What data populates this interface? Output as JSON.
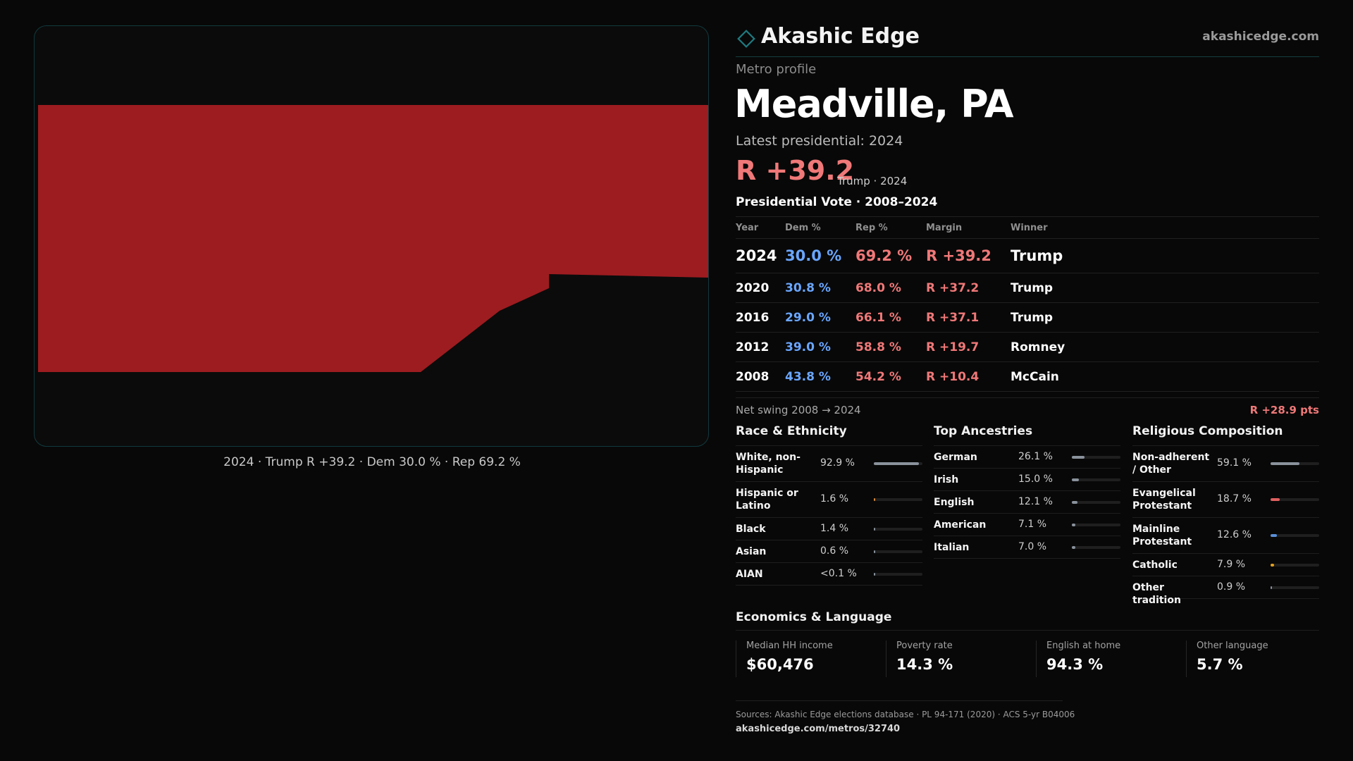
{
  "map": {
    "caption": "2024 · Trump R +39.2 · Dem 30.0 % · Rep 69.2 %",
    "fill_color": "#9d1c20"
  },
  "brand": {
    "name": "Akashic Edge",
    "url": "akashicedge.com",
    "accent_color": "#1f7a80"
  },
  "header": {
    "kicker": "Metro profile",
    "title": "Meadville, PA",
    "latest_label": "Latest presidential: 2024",
    "latest_margin": "R +39.2",
    "latest_sub": "Trump · 2024"
  },
  "vote_table": {
    "title": "Presidential Vote · 2008–2024",
    "columns": [
      "Year",
      "Dem %",
      "Rep %",
      "Margin",
      "Winner"
    ],
    "rows": [
      {
        "year": "2024",
        "dem": "30.0 %",
        "rep": "69.2 %",
        "margin": "R +39.2",
        "winner": "Trump"
      },
      {
        "year": "2020",
        "dem": "30.8 %",
        "rep": "68.0 %",
        "margin": "R +37.2",
        "winner": "Trump"
      },
      {
        "year": "2016",
        "dem": "29.0 %",
        "rep": "66.1 %",
        "margin": "R +37.1",
        "winner": "Trump"
      },
      {
        "year": "2012",
        "dem": "39.0 %",
        "rep": "58.8 %",
        "margin": "R +19.7",
        "winner": "Romney"
      },
      {
        "year": "2008",
        "dem": "43.8 %",
        "rep": "54.2 %",
        "margin": "R +10.4",
        "winner": "McCain"
      }
    ]
  },
  "swing": {
    "label": "Net swing 2008 → 2024",
    "value": "R +28.9 pts"
  },
  "race": {
    "title": "Race & Ethnicity",
    "items": [
      {
        "label": "White, non-Hispanic",
        "value": "92.9 %",
        "fraction": 0.929,
        "color": "#8a929c"
      },
      {
        "label": "Hispanic or Latino",
        "value": "1.6 %",
        "fraction": 0.016,
        "color": "#d98a3a"
      },
      {
        "label": "Black",
        "value": "1.4 %",
        "fraction": 0.014,
        "color": "#8a929c"
      },
      {
        "label": "Asian",
        "value": "0.6 %",
        "fraction": 0.006,
        "color": "#8a929c"
      },
      {
        "label": "AIAN",
        "value": "<0.1 %",
        "fraction": 0.0,
        "color": "#8a929c"
      }
    ]
  },
  "ancestry": {
    "title": "Top Ancestries",
    "items": [
      {
        "label": "German",
        "value": "26.1 %",
        "fraction": 0.261,
        "color": "#8a929c"
      },
      {
        "label": "Irish",
        "value": "15.0 %",
        "fraction": 0.15,
        "color": "#8a929c"
      },
      {
        "label": "English",
        "value": "12.1 %",
        "fraction": 0.121,
        "color": "#8a929c"
      },
      {
        "label": "American",
        "value": "7.1 %",
        "fraction": 0.071,
        "color": "#8a929c"
      },
      {
        "label": "Italian",
        "value": "7.0 %",
        "fraction": 0.07,
        "color": "#8a929c"
      }
    ]
  },
  "religion": {
    "title": "Religious Composition",
    "items": [
      {
        "label": "Non-adherent / Other",
        "value": "59.1 %",
        "fraction": 0.591,
        "color": "#8a929c"
      },
      {
        "label": "Evangelical Protestant",
        "value": "18.7 %",
        "fraction": 0.187,
        "color": "#e06060"
      },
      {
        "label": "Mainline Protestant",
        "value": "12.6 %",
        "fraction": 0.126,
        "color": "#5a8fd8"
      },
      {
        "label": "Catholic",
        "value": "7.9 %",
        "fraction": 0.079,
        "color": "#e0a020"
      },
      {
        "label": "Other tradition",
        "value": "0.9 %",
        "fraction": 0.009,
        "color": "#8a929c"
      }
    ]
  },
  "economics": {
    "title": "Economics & Language",
    "cells": [
      {
        "label": "Median HH income",
        "value": "$60,476"
      },
      {
        "label": "Poverty rate",
        "value": "14.3 %"
      },
      {
        "label": "English at home",
        "value": "94.3 %"
      },
      {
        "label": "Other language",
        "value": "5.7 %"
      }
    ]
  },
  "footer": {
    "sources": "Sources: Akashic Edge elections database · PL 94-171 (2020) · ACS 5-yr B04006",
    "url": "akashicedge.com/metros/32740"
  }
}
